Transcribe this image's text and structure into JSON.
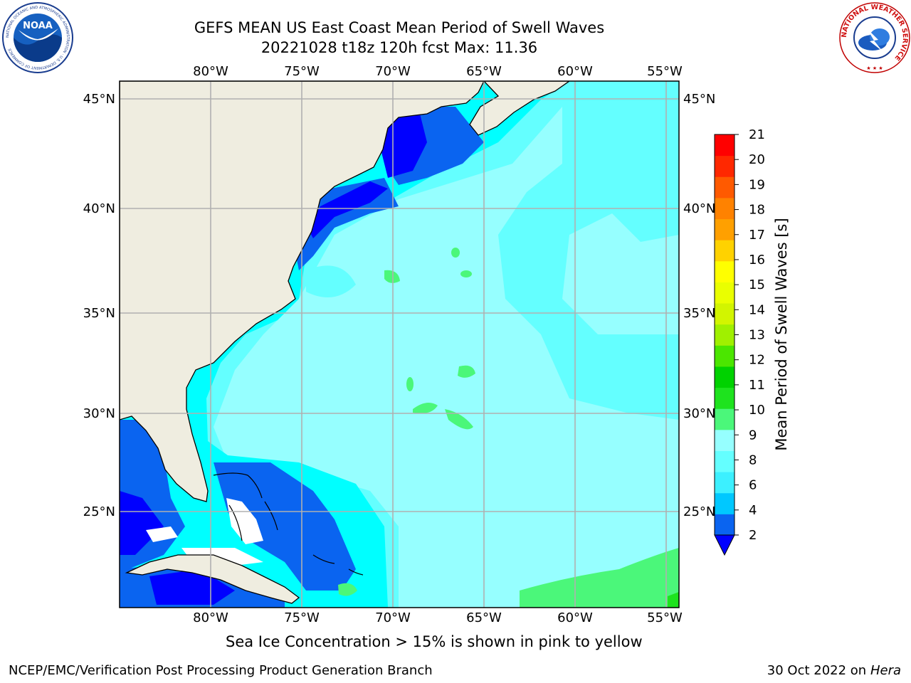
{
  "header": {
    "title_line1": "GEFS MEAN US East Coast Mean Period of Swell Waves",
    "title_line2": "20221028 t18z 120h fcst   Max: 11.36"
  },
  "logos": {
    "noaa_text": "NOAA",
    "noaa_ring_text": "NATIONAL OCEANIC AND ATMOSPHERIC ADMINISTRATION · U.S. DEPARTMENT OF COMMERCE",
    "nws_ring_text": "NATIONAL WEATHER SERVICE"
  },
  "map": {
    "lon_labels": [
      "80°W",
      "75°W",
      "70°W",
      "65°W",
      "60°W",
      "55°W"
    ],
    "lat_labels": [
      "45°N",
      "40°N",
      "35°N",
      "30°N",
      "25°N"
    ]
  },
  "colorbar": {
    "label": "Mean Period of Swell Waves [s]",
    "ticks": [
      "2",
      "4",
      "6",
      "8",
      "9",
      "10",
      "11",
      "12",
      "13",
      "14",
      "15",
      "16",
      "17",
      "18",
      "19",
      "20",
      "21"
    ],
    "colors": [
      "#0a64f0",
      "#00c8ff",
      "#3cf0ff",
      "#64ffff",
      "#96ffff",
      "#4bf77a",
      "#1ee31e",
      "#00d200",
      "#4be600",
      "#a0f000",
      "#d2f500",
      "#eaff00",
      "#ffff00",
      "#ffd200",
      "#ffa000",
      "#ff8200",
      "#ff5a00",
      "#ff2800",
      "#ff0000"
    ],
    "extend_color": "#0000ff"
  },
  "captions": {
    "ice_note": "Sea Ice Concentration > 15% is shown in pink to yellow",
    "branch": "NCEP/EMC/Verification Post Processing Product Generation Branch",
    "date": "30 Oct 2022 on ",
    "system": "Hera"
  }
}
